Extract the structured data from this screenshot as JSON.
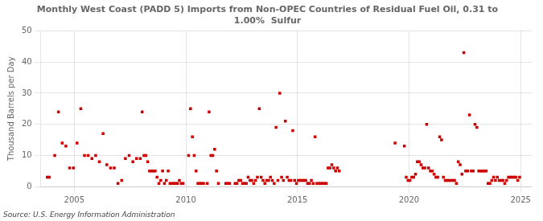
{
  "chart_data": {
    "type": "scatter",
    "title": "Monthly West Coast (PADD 5) Imports from Non-OPEC Countries of Residual Fuel Oil, 0.31 to\n1.00%  Sulfur",
    "ylabel": "Thousand Barrels per Day",
    "source": "Source: U.S. Energy Information Administration",
    "color": "#cc0000",
    "marker": "square",
    "grid": true,
    "xlim": [
      2003.5,
      2025.5
    ],
    "xticks": [
      2005,
      2010,
      2015,
      2020,
      2025
    ],
    "ylim": [
      0,
      50
    ],
    "yticks": [
      0,
      10,
      20,
      30,
      40,
      50
    ],
    "x": [
      2003.7916666666667,
      2003.875,
      2004.125,
      2004.2916666666667,
      2004.4583333333333,
      2004.625,
      2004.7916666666667,
      2004.9583333333333,
      2005.125,
      2005.2916666666667,
      2005.4583333333333,
      2005.625,
      2005.7916666666667,
      2005.9583333333333,
      2006.125,
      2006.2916666666667,
      2006.4583333333333,
      2006.625,
      2006.7916666666667,
      2006.9583333333333,
      2007.125,
      2007.2916666666667,
      2007.4583333333333,
      2007.625,
      2007.7916666666667,
      2007.9583333333333,
      2008.0416666666667,
      2008.125,
      2008.2083333333333,
      2008.2916666666667,
      2008.375,
      2008.4583333333333,
      2008.5416666666667,
      2008.625,
      2008.7083333333333,
      2008.7916666666667,
      2008.875,
      2008.9583333333333,
      2009.0416666666667,
      2009.125,
      2009.2083333333333,
      2009.2916666666667,
      2009.375,
      2009.4583333333333,
      2009.5416666666667,
      2009.625,
      2009.7083333333333,
      2009.7916666666667,
      2009.875,
      2010.125,
      2010.2083333333333,
      2010.2916666666667,
      2010.375,
      2010.4583333333333,
      2010.5416666666667,
      2010.625,
      2010.7083333333333,
      2010.7916666666667,
      2010.9583333333333,
      2011.0416666666667,
      2011.125,
      2011.2083333333333,
      2011.2916666666667,
      2011.375,
      2011.4583333333333,
      2011.7916666666667,
      2011.875,
      2011.9583333333333,
      2012.2083333333333,
      2012.2916666666667,
      2012.375,
      2012.4583333333333,
      2012.5416666666667,
      2012.625,
      2012.7083333333333,
      2012.7916666666667,
      2012.875,
      2012.9583333333333,
      2013.0416666666667,
      2013.125,
      2013.2083333333333,
      2013.2916666666667,
      2013.375,
      2013.4583333333333,
      2013.5416666666667,
      2013.625,
      2013.7083333333333,
      2013.7916666666667,
      2013.875,
      2013.9583333333333,
      2014.0416666666667,
      2014.125,
      2014.2083333333333,
      2014.2916666666667,
      2014.375,
      2014.4583333333333,
      2014.5416666666667,
      2014.625,
      2014.7083333333333,
      2014.7916666666667,
      2014.875,
      2014.9583333333333,
      2015.0416666666667,
      2015.125,
      2015.2083333333333,
      2015.2916666666667,
      2015.375,
      2015.4583333333333,
      2015.5416666666667,
      2015.625,
      2015.7083333333333,
      2015.7916666666667,
      2015.875,
      2015.9583333333333,
      2016.0416666666667,
      2016.125,
      2016.2083333333333,
      2016.2916666666667,
      2016.375,
      2016.4583333333333,
      2016.5416666666667,
      2016.625,
      2016.7083333333333,
      2016.7916666666667,
      2016.875,
      2019.375,
      2019.7916666666667,
      2019.875,
      2019.9583333333333,
      2020.0416666666667,
      2020.125,
      2020.2083333333333,
      2020.2916666666667,
      2020.375,
      2020.4583333333333,
      2020.5416666666667,
      2020.625,
      2020.7083333333333,
      2020.7916666666667,
      2020.875,
      2020.9583333333333,
      2021.0416666666667,
      2021.125,
      2021.2083333333333,
      2021.2916666666667,
      2021.375,
      2021.4583333333333,
      2021.5416666666667,
      2021.625,
      2021.7083333333333,
      2021.7916666666667,
      2021.875,
      2021.9583333333333,
      2022.0416666666667,
      2022.125,
      2022.2083333333333,
      2022.2916666666667,
      2022.375,
      2022.4583333333333,
      2022.5416666666667,
      2022.625,
      2022.7083333333333,
      2022.7916666666667,
      2022.875,
      2022.9583333333333,
      2023.0416666666667,
      2023.125,
      2023.2083333333333,
      2023.2916666666667,
      2023.375,
      2023.4583333333333,
      2023.5416666666667,
      2023.625,
      2023.7083333333333,
      2023.7916666666667,
      2023.875,
      2023.9583333333333,
      2024.0416666666667,
      2024.125,
      2024.2083333333333,
      2024.2916666666667,
      2024.375,
      2024.4583333333333,
      2024.5416666666667,
      2024.625,
      2024.7083333333333,
      2024.7916666666667,
      2024.875,
      2024.9583333333333
    ],
    "values": [
      3,
      3,
      10,
      24,
      14,
      13,
      6,
      6,
      14,
      25,
      10,
      10,
      9,
      10,
      8,
      17,
      7,
      6,
      6,
      1,
      2,
      9,
      10,
      8,
      9,
      9,
      24,
      10,
      10,
      8,
      5,
      5,
      5,
      5,
      3,
      1,
      2,
      5,
      1,
      2,
      5,
      1,
      1,
      1,
      1,
      1,
      2,
      1,
      1,
      10,
      25,
      16,
      10,
      5,
      1,
      1,
      1,
      1,
      1,
      24,
      10,
      10,
      12,
      5,
      1,
      1,
      1,
      1,
      1,
      1,
      2,
      2,
      1,
      1,
      1,
      3,
      2,
      2,
      1,
      2,
      3,
      25,
      3,
      2,
      1,
      2,
      2,
      3,
      2,
      1,
      19,
      2,
      30,
      3,
      2,
      21,
      3,
      2,
      2,
      18,
      2,
      1,
      2,
      2,
      2,
      2,
      2,
      1,
      1,
      2,
      1,
      16,
      1,
      1,
      1,
      1,
      1,
      1,
      6,
      6,
      7,
      6,
      5,
      6,
      5,
      14,
      13,
      3,
      2,
      2,
      3,
      3,
      4,
      8,
      8,
      7,
      6,
      6,
      20,
      6,
      5,
      5,
      4,
      3,
      3,
      16,
      15,
      3,
      2,
      2,
      2,
      2,
      2,
      2,
      1,
      8,
      7,
      4,
      43,
      5,
      5,
      23,
      5,
      5,
      20,
      19,
      5,
      5,
      5,
      5,
      5,
      1,
      1,
      2,
      3,
      2,
      3,
      2,
      2,
      2,
      1,
      2,
      3,
      3,
      3,
      3,
      3,
      2,
      3
    ]
  }
}
